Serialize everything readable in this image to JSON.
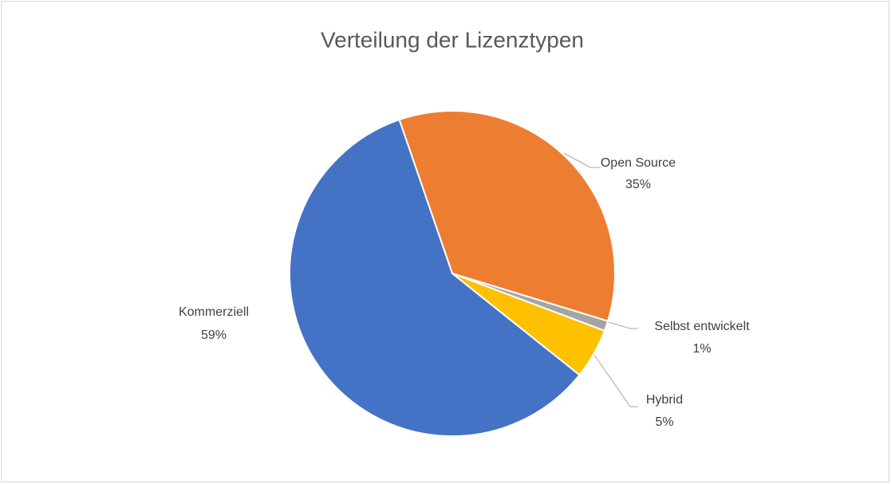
{
  "chart_data": {
    "type": "pie",
    "title": "Verteilung der Lizenztypen",
    "categories": [
      "Open Source",
      "Selbst entwickelt",
      "Hybrid",
      "Kommerziell"
    ],
    "values": [
      35,
      1,
      5,
      59
    ],
    "value_labels": [
      "35%",
      "1%",
      "5%",
      "59%"
    ],
    "colors": [
      "#ed7d31",
      "#a5a5a5",
      "#ffc000",
      "#4472c4"
    ]
  }
}
